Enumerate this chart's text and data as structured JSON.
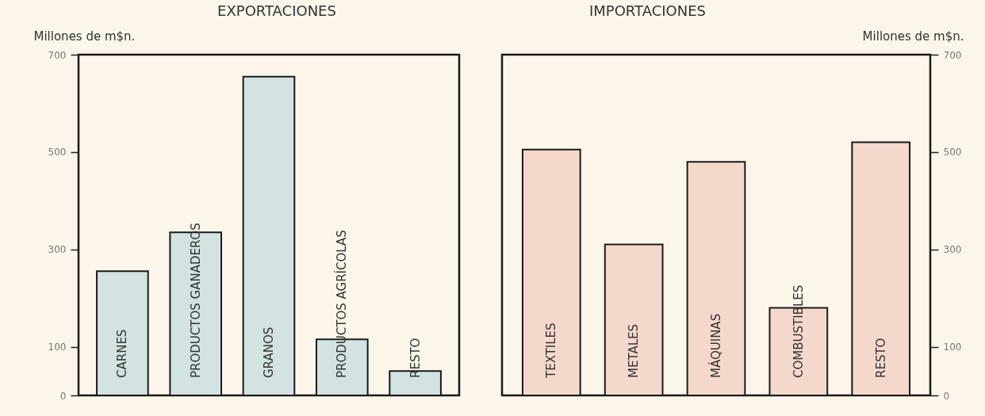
{
  "chart_data": [
    {
      "type": "bar",
      "title": "EXPORTACIONES",
      "ylabel": "Millones de m$n.",
      "categories": [
        "CARNES",
        "PRODUCTOS GANADEROS",
        "GRANOS",
        "PRODUCTOS AGRÍCOLAS",
        "RESTO"
      ],
      "series": [
        {
          "color": "#d3e3e2",
          "values": [
            255,
            335,
            655,
            115,
            50
          ]
        }
      ],
      "ylim": [
        0,
        700
      ],
      "yticks": [
        0,
        100,
        300,
        500,
        700
      ]
    },
    {
      "type": "bar",
      "title": "IMPORTACIONES",
      "y2label": "Millones de m$n.",
      "categories": [
        "TEXTILES",
        "METALES",
        "MÁQUINAS",
        "COMBUSTIBLES",
        "RESTO"
      ],
      "series": [
        {
          "color": "#f5d8cc",
          "values": [
            505,
            310,
            480,
            180,
            520
          ],
          "axis": "y2"
        }
      ],
      "y2lim": [
        0,
        700
      ],
      "y2ticks": [
        0,
        100,
        300,
        500,
        700
      ]
    }
  ]
}
